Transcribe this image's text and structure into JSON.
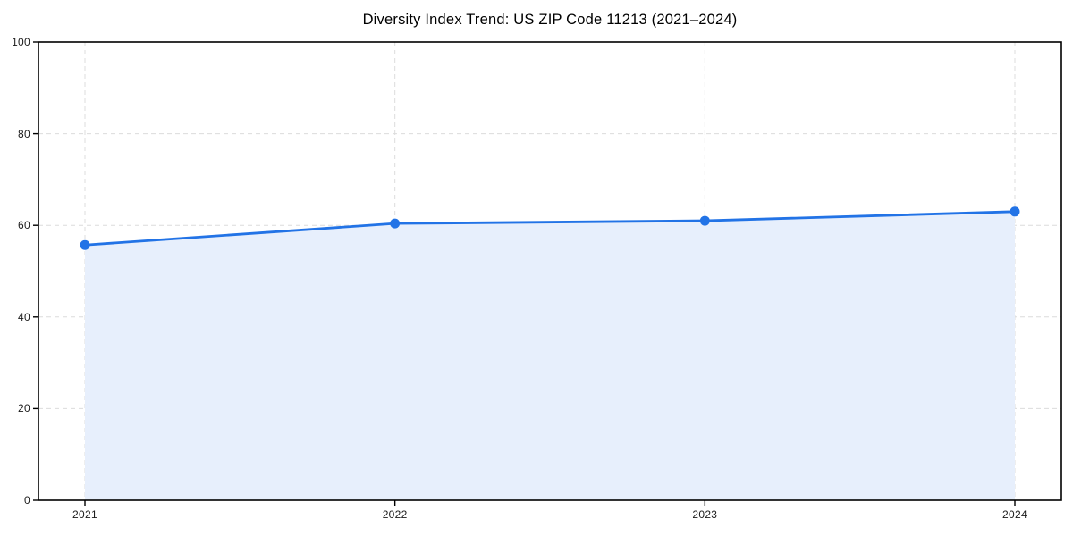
{
  "title": "Diversity Index Trend: US ZIP Code 11213 (2021–2024)",
  "chart_data": {
    "type": "line",
    "title": "Diversity Index Trend: US ZIP Code 11213 (2021–2024)",
    "x": [
      2021,
      2022,
      2023,
      2024
    ],
    "categories": [
      "2021",
      "2022",
      "2023",
      "2024"
    ],
    "series": [
      {
        "name": "Diversity Index",
        "values": [
          55.7,
          60.4,
          61.0,
          63.0
        ]
      }
    ],
    "xlabel": "",
    "ylabel": "",
    "ylim": [
      0,
      100
    ],
    "yticks": [
      0,
      20,
      40,
      60,
      80,
      100
    ],
    "grid": "dashed-both-axes",
    "legend_position": "none",
    "area_fill": true,
    "marker": "circle",
    "colors": {
      "line": "#2273e6",
      "marker": "#2273e6",
      "area_fill": "#e7effc",
      "grid": "#dcdcdc",
      "spine": "#000000",
      "tick_label": "#1a1a1a",
      "title": "#000000",
      "background": "#ffffff"
    }
  }
}
